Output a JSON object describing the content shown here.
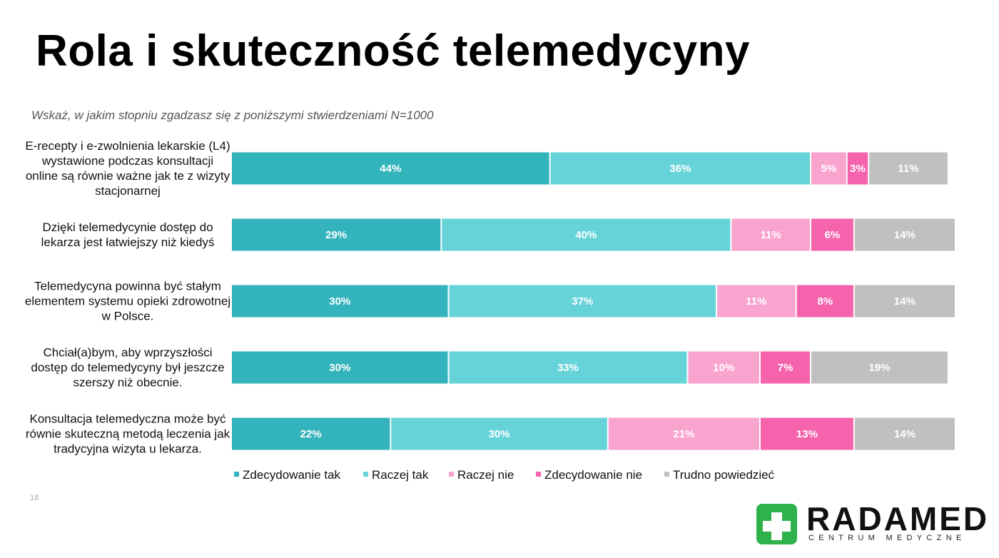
{
  "chart_data": {
    "type": "stacked-bar-horizontal",
    "title": "Rola i skuteczność telemedycyny",
    "subtitle": "Wskaż, w jakim stopniu zgadzasz się z poniższymi stwierdzeniami N=1000",
    "categories": [
      "E-recepty i e-zwolnienia lekarskie (L4) wystawione podczas konsultacji online są równie ważne jak te z wizyty stacjonarnej",
      "Dzięki telemedycynie dostęp do lekarza jest łatwiejszy niż kiedyś",
      "Telemedycyna powinna być stałym elementem systemu opieki zdrowotnej w Polsce.",
      "Chciał(a)bym, aby wprzyszłości dostęp do telemedycyny był jeszcze szerszy niż obecnie.",
      "Konsultacja telemedyczna może być równie skuteczną metodą leczenia jak tradycyjna wizyta u lekarza."
    ],
    "xlim": [
      0,
      100
    ],
    "series": [
      {
        "name": "Zdecydowanie tak",
        "color": "#33b3bb",
        "values": [
          44,
          29,
          30,
          30,
          22
        ],
        "value_labels": [
          "44%",
          "29%",
          "30%",
          "30%",
          "22%"
        ]
      },
      {
        "name": "Raczej tak",
        "color": "#66d3d9",
        "values": [
          36,
          40,
          37,
          33,
          30
        ],
        "value_labels": [
          "36%",
          "40%",
          "37%",
          "33%",
          "30%"
        ]
      },
      {
        "name": "Raczej nie",
        "color": "#f9a3cf",
        "values": [
          5,
          11,
          11,
          10,
          21
        ],
        "value_labels": [
          "5%",
          "11%",
          "11%",
          "10%",
          "21%"
        ]
      },
      {
        "name": "Zdecydowanie nie",
        "color": "#f563ad",
        "values": [
          3,
          6,
          8,
          7,
          13
        ],
        "value_labels": [
          "3%",
          "6%",
          "8%",
          "7%",
          "13%"
        ]
      },
      {
        "name": "Trudno powiedzieć",
        "color": "#c0c0c0",
        "values": [
          11,
          14,
          14,
          19,
          14
        ],
        "value_labels": [
          "11%",
          "14%",
          "14%",
          "19%",
          "14%"
        ]
      }
    ],
    "legend": "bottom"
  },
  "page_number": "18",
  "logo": {
    "name": "RADAMED",
    "tagline": "CENTRUM MEDYCZNE"
  }
}
